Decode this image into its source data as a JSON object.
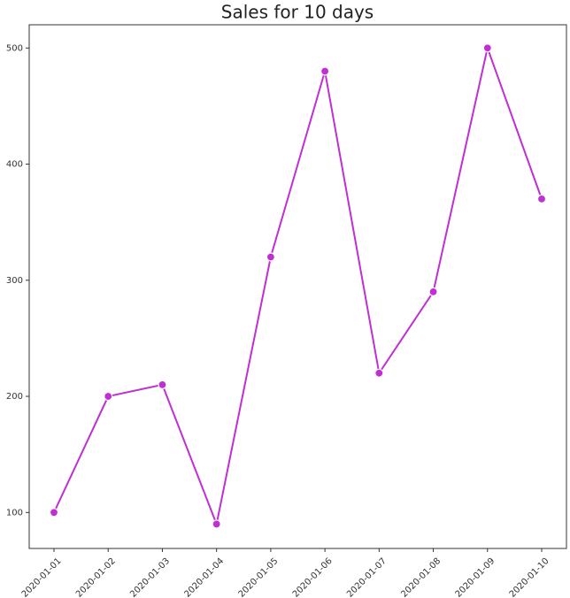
{
  "chart_data": {
    "type": "line",
    "title": "Sales for 10 days",
    "x": [
      "2020-01-01",
      "2020-01-02",
      "2020-01-03",
      "2020-01-04",
      "2020-01-05",
      "2020-01-06",
      "2020-01-07",
      "2020-01-08",
      "2020-01-09",
      "2020-01-10"
    ],
    "series": [
      {
        "name": "Sales",
        "color": "#bf2fd3",
        "values": [
          100,
          200,
          210,
          90,
          320,
          480,
          220,
          290,
          500,
          370
        ]
      }
    ],
    "ylim": [
      69,
      520
    ],
    "yticks": [
      100,
      200,
      300,
      400,
      500
    ],
    "grid": false,
    "markers": true
  }
}
